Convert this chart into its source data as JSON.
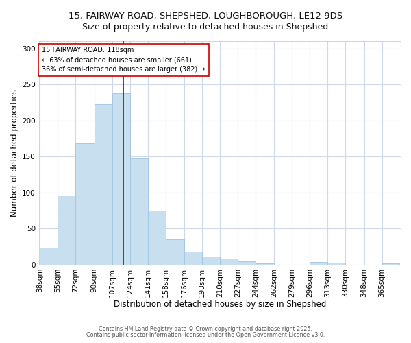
{
  "title_line1": "15, FAIRWAY ROAD, SHEPSHED, LOUGHBOROUGH, LE12 9DS",
  "title_line2": "Size of property relative to detached houses in Shepshed",
  "xlabel": "Distribution of detached houses by size in Shepshed",
  "ylabel": "Number of detached properties",
  "bar_color": "#c8dff0",
  "bar_edge_color": "#a0c4e0",
  "annotation_box_color": "#cc0000",
  "property_line_color": "#cc0000",
  "property_value": 118,
  "annotation_text_line1": "15 FAIRWAY ROAD: 118sqm",
  "annotation_text_line2": "← 63% of detached houses are smaller (661)",
  "annotation_text_line3": "36% of semi-detached houses are larger (382) →",
  "bins": [
    38,
    55,
    72,
    90,
    107,
    124,
    141,
    158,
    176,
    193,
    210,
    227,
    244,
    262,
    279,
    296,
    313,
    330,
    348,
    365,
    382
  ],
  "counts": [
    24,
    96,
    168,
    222,
    238,
    147,
    75,
    35,
    18,
    11,
    8,
    5,
    2,
    0,
    0,
    4,
    3,
    0,
    0,
    2
  ],
  "ylim": [
    0,
    310
  ],
  "yticks": [
    0,
    50,
    100,
    150,
    200,
    250,
    300
  ],
  "background_color": "#ffffff",
  "grid_color": "#d0d8e8",
  "footer_line1": "Contains HM Land Registry data © Crown copyright and database right 2025.",
  "footer_line2": "Contains public sector information licensed under the Open Government Licence v3.0.",
  "title_fontsize": 9.5,
  "subtitle_fontsize": 9,
  "axis_label_fontsize": 8.5,
  "tick_fontsize": 7.5,
  "footer_fontsize": 5.8
}
